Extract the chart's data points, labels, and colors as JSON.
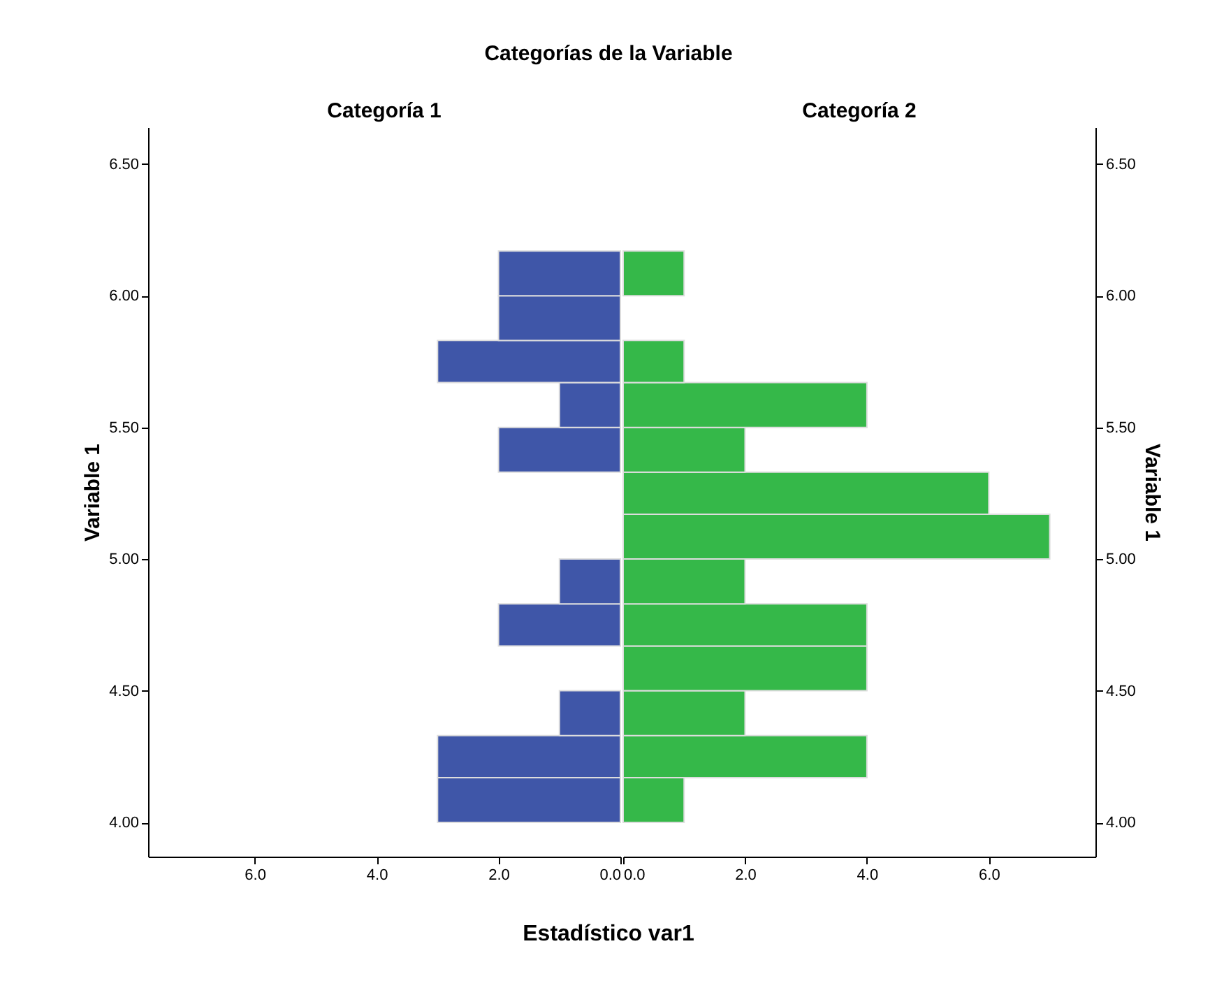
{
  "chart_data": [
    {
      "type": "histogram",
      "orientation": "horizontal",
      "title": "Categorías de la Variable",
      "subtitle": "Categoría 1",
      "ylabel": "Variable 1",
      "xlabel": "Estadístico var1",
      "color": "#3f56a8",
      "bins": [
        4,
        4.17,
        4.33,
        4.5,
        4.67,
        4.83,
        5,
        5.33,
        5.5,
        5.67,
        5.83,
        6,
        6.17
      ],
      "values": [
        3,
        3,
        1,
        0,
        2,
        1,
        0,
        2,
        1,
        3,
        2,
        2
      ],
      "xlim": [
        7.75,
        0
      ],
      "xticks": [
        {
          "value": 6,
          "label": "6.0"
        },
        {
          "value": 4,
          "label": "4.0"
        },
        {
          "value": 2,
          "label": "2.0"
        },
        {
          "value": 0,
          "label": "0.0"
        }
      ],
      "ylim": [
        3.87,
        6.64
      ],
      "yticks": [
        {
          "value": 4,
          "label": "4.00"
        },
        {
          "value": 4.5,
          "label": "4.50"
        },
        {
          "value": 5,
          "label": "5.00"
        },
        {
          "value": 5.5,
          "label": "5.50"
        },
        {
          "value": 6,
          "label": "6.00"
        },
        {
          "value": 6.5,
          "label": "6.50"
        }
      ],
      "grid": false
    },
    {
      "type": "histogram",
      "orientation": "horizontal",
      "subtitle": "Categoría 2",
      "ylabel": "Variable 1",
      "color": "#35b849",
      "bins": [
        4,
        4.17,
        4.33,
        4.5,
        4.67,
        4.83,
        5,
        5.17,
        5.33,
        5.5,
        5.67,
        5.83,
        6,
        6.17
      ],
      "values": [
        1,
        4,
        2,
        4,
        4,
        2,
        7,
        6,
        2,
        4,
        1,
        0,
        1
      ],
      "xlim": [
        0,
        7.75
      ],
      "xticks": [
        {
          "value": 0,
          "label": "0.0"
        },
        {
          "value": 2,
          "label": "2.0"
        },
        {
          "value": 4,
          "label": "4.0"
        },
        {
          "value": 6,
          "label": "6.0"
        }
      ],
      "ylim": [
        3.87,
        6.64
      ],
      "yticks": [
        {
          "value": 4,
          "label": "4.00"
        },
        {
          "value": 4.5,
          "label": "4.50"
        },
        {
          "value": 5,
          "label": "5.00"
        },
        {
          "value": 5.5,
          "label": "5.50"
        },
        {
          "value": 6,
          "label": "6.00"
        },
        {
          "value": 6.5,
          "label": "6.50"
        }
      ],
      "grid": false
    }
  ]
}
